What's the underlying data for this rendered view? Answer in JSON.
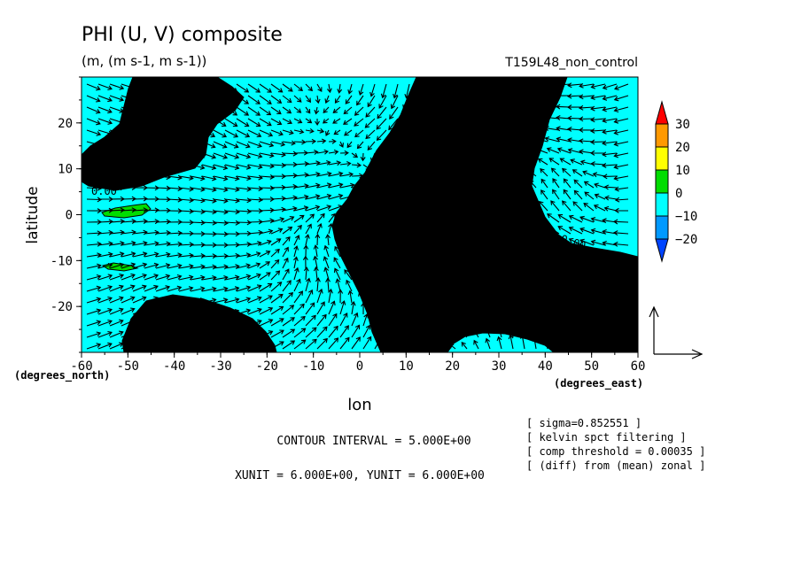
{
  "chart_data": {
    "type": "heatmap",
    "title": "PHI (U, V) composite",
    "subtitle": "(m, (m s-1, m s-1))",
    "dataset_label": "T159L48_non_control",
    "xlabel": "lon",
    "ylabel": "latitude",
    "x_units": "(degrees_east)",
    "y_units": "(degrees_north)",
    "xlim": [
      -60,
      60
    ],
    "ylim": [
      -30,
      30
    ],
    "x_ticks": [
      -60,
      -50,
      -40,
      -30,
      -20,
      -10,
      0,
      10,
      20,
      30,
      40,
      50,
      60
    ],
    "x_tick_labels": [
      "-60",
      "-50",
      "-40",
      "-30",
      "-20",
      "-10",
      "0",
      "10",
      "20",
      "30",
      "40",
      "50",
      "60"
    ],
    "y_ticks": [
      -20,
      -10,
      0,
      10,
      20
    ],
    "y_tick_labels": [
      "-20",
      "-10",
      "0",
      "10",
      "20"
    ],
    "contour_labels": [
      "0.00",
      "0.00",
      "0.00"
    ],
    "contour_interval_text": "CONTOUR INTERVAL = 5.000E+00",
    "vector_unit_text": "XUNIT = 6.000E+00, YUNIT = 6.000E+00",
    "colorbar": {
      "labels": [
        "30",
        "20",
        "10",
        "0",
        "−10",
        "−20"
      ],
      "levels": [
        30,
        20,
        10,
        0,
        -10,
        -20
      ],
      "colors": [
        "#ff0000",
        "#ff9900",
        "#ffff00",
        "#00dd00",
        "#00ffff",
        "#0099ff",
        "#0044ff"
      ]
    },
    "field_colors": {
      "positive": "#00dd00",
      "negative": "#00ffff"
    },
    "notes": [
      "[ sigma=0.852551 ]",
      "[ kelvin spct filtering ]",
      "[ comp threshold = 0.00035 ]",
      "[ (diff) from (mean) zonal ]"
    ]
  }
}
